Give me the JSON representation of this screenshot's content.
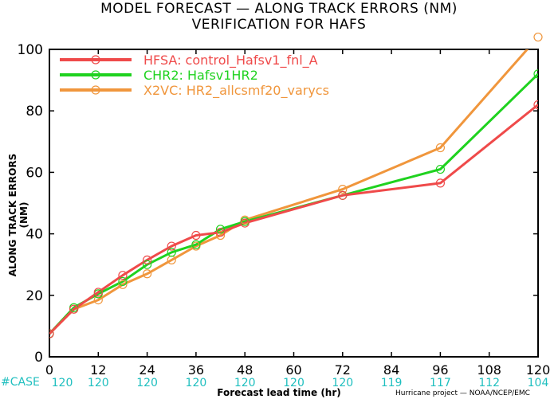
{
  "header": {
    "title_line1": "MODEL FORECAST — ALONG TRACK ERRORS (NM)",
    "title_line2": "VERIFICATION FOR HAFS"
  },
  "footer": {
    "cases_label": "#CASE",
    "credit": "Hurricane project — NOAA/NCEP/EMC"
  },
  "chart_data": {
    "type": "line",
    "title": "MODEL FORECAST — ALONG TRACK ERRORS (NM)",
    "subtitle": "VERIFICATION FOR HAFS",
    "xlabel": "Forecast lead time (hr)",
    "ylabel": "ALONG TRACK ERRORS (NM)",
    "xlim": [
      0,
      120
    ],
    "ylim": [
      0,
      100
    ],
    "xticks": [
      0,
      12,
      24,
      36,
      48,
      60,
      72,
      84,
      96,
      108,
      120
    ],
    "yticks": [
      0,
      20,
      40,
      60,
      80,
      100
    ],
    "grid": false,
    "legend_position": "top-left",
    "series": [
      {
        "name": "HFSA:  control_Hafsv1_fnl_A",
        "color": "#ef4a4a",
        "x": [
          0,
          6,
          12,
          18,
          24,
          30,
          36,
          42,
          48,
          72,
          96,
          120
        ],
        "y": [
          7.5,
          15.5,
          21,
          26.5,
          31.5,
          36,
          39.5,
          40.5,
          43.5,
          52.5,
          56.5,
          82
        ]
      },
      {
        "name": "CHR2:  Hafsv1HR2",
        "color": "#1fd21f",
        "x": [
          0,
          6,
          12,
          18,
          24,
          30,
          36,
          42,
          48,
          72,
          96,
          120
        ],
        "y": [
          7.5,
          16,
          20.5,
          24.5,
          30,
          34,
          36.5,
          41.5,
          44,
          52.5,
          61,
          92
        ]
      },
      {
        "name": "X2VC:  HR2_allcsmf20_varycs",
        "color": "#f0963c",
        "x": [
          0,
          6,
          12,
          18,
          24,
          30,
          36,
          42,
          48,
          72,
          96,
          120
        ],
        "y": [
          7.5,
          15.5,
          18.5,
          23.5,
          27,
          31.5,
          36,
          39.5,
          44.5,
          54.5,
          68,
          104
        ]
      }
    ],
    "cases": {
      "label": "#CASE",
      "color": "#1fbfbf",
      "x": [
        0,
        12,
        24,
        36,
        48,
        60,
        72,
        84,
        96,
        108,
        120
      ],
      "values": [
        "120",
        "120",
        "120",
        "120",
        "120",
        "120",
        "120",
        "119",
        "117",
        "112",
        "104"
      ]
    }
  }
}
